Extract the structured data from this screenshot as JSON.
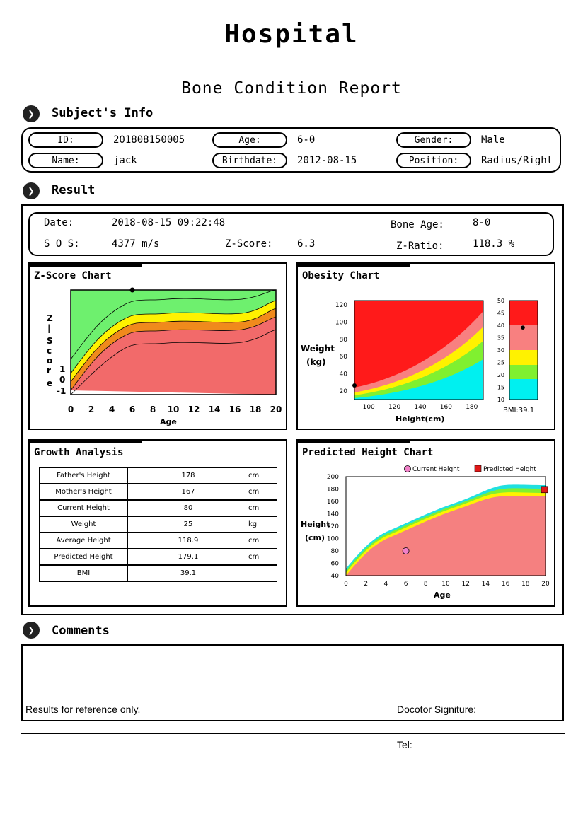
{
  "header": {
    "title": "Hospital",
    "subtitle": "Bone Condition Report"
  },
  "subject": {
    "heading": "Subject's Info",
    "id_label": "ID:",
    "id": "201808150005",
    "name_label": "Name:",
    "name": "jack",
    "age_label": "Age:",
    "age": "6-0",
    "birthdate_label": "Birthdate:",
    "birthdate": "2012-08-15",
    "gender_label": "Gender:",
    "gender": "Male",
    "position_label": "Position:",
    "position": "Radius/Right"
  },
  "result": {
    "heading": "Result",
    "date_label": "Date:",
    "date": "2018-08-15 09:22:48",
    "bone_age_label": "Bone Age:",
    "bone_age": "8-0",
    "sos_label": "S O S:",
    "sos": "4377 m/s",
    "zscore_label": "Z-Score:",
    "zscore": "6.3",
    "zratio_label": "Z-Ratio:",
    "zratio": "118.3 %"
  },
  "zscore_chart": {
    "title": "Z-Score Chart",
    "ylabel": "Z|Score",
    "xlabel": "Age",
    "y_ticks": [
      "1",
      "0",
      "-1"
    ],
    "x_ticks": [
      "0",
      "2",
      "4",
      "6",
      "8",
      "10",
      "12",
      "14",
      "16",
      "18",
      "20"
    ],
    "point": {
      "age": 6
    }
  },
  "obesity_chart": {
    "title": "Obesity Chart",
    "ylabel_1": "Weight",
    "ylabel_2": "(kg)",
    "xlabel": "Height(cm)",
    "y_ticks": [
      "20",
      "40",
      "60",
      "80",
      "100",
      "120"
    ],
    "x_ticks": [
      "100",
      "120",
      "140",
      "160",
      "180"
    ],
    "bmi_ticks": [
      "10",
      "15",
      "20",
      "25",
      "30",
      "35",
      "40",
      "45",
      "50"
    ],
    "bmi_label": "BMI:39.1",
    "bmi_value": 39.1,
    "point": {
      "height": 80,
      "weight": 25
    }
  },
  "growth": {
    "title": "Growth Analysis",
    "rows": [
      {
        "label": "Father's Height",
        "value": "178",
        "unit": "cm"
      },
      {
        "label": "Mother's Height",
        "value": "167",
        "unit": "cm"
      },
      {
        "label": "Current Height",
        "value": "80",
        "unit": "cm"
      },
      {
        "label": "Weight",
        "value": "25",
        "unit": "kg"
      },
      {
        "label": "Average Height",
        "value": "118.9",
        "unit": "cm"
      },
      {
        "label": "Predicted Height",
        "value": "179.1",
        "unit": "cm"
      },
      {
        "label": "BMI",
        "value": "39.1",
        "unit": ""
      }
    ]
  },
  "predicted_chart": {
    "title": "Predicted Height Chart",
    "legend_current": "Current Height",
    "legend_predicted": "Predicted Height",
    "ylabel_1": "Height",
    "ylabel_2": "(cm)",
    "xlabel": "Age",
    "y_ticks": [
      "40",
      "60",
      "80",
      "100",
      "120",
      "140",
      "160",
      "180",
      "200"
    ],
    "x_ticks": [
      "0",
      "2",
      "4",
      "6",
      "8",
      "10",
      "12",
      "14",
      "16",
      "18",
      "20"
    ],
    "current": {
      "age": 6,
      "height": 80
    },
    "predicted": {
      "age": 20,
      "height": 179.1
    },
    "colors": {
      "current": "#f080c8",
      "predicted": "#e01818"
    }
  },
  "comments": {
    "heading": "Comments",
    "note": "Results for reference only.",
    "signature_label": "Docotor Signiture:",
    "tel_label": "Tel:"
  }
}
